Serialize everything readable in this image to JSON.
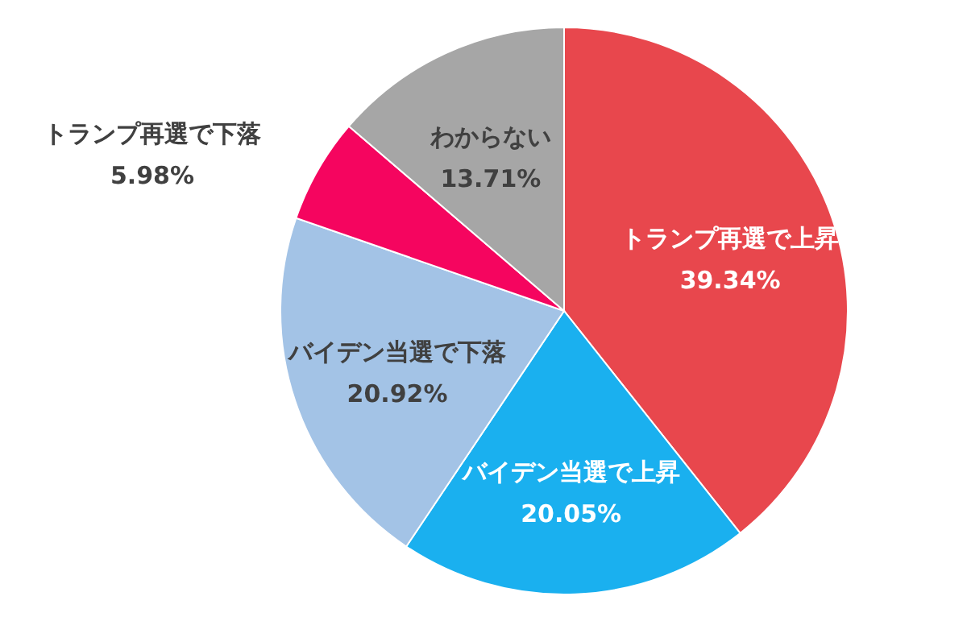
{
  "chart_data": {
    "type": "pie",
    "categories": [
      "トランプ再選で上昇",
      "バイデン当選で上昇",
      "バイデン当選で下落",
      "トランプ再選で下落",
      "わからない"
    ],
    "values": [
      39.34,
      20.05,
      20.92,
      5.98,
      13.71
    ],
    "value_labels": [
      "39.34%",
      "20.05%",
      "20.92%",
      "5.98%",
      "13.71%"
    ],
    "colors": [
      "#e8474d",
      "#1ab0ef",
      "#a3c3e6",
      "#f5055f",
      "#a6a6a6"
    ]
  }
}
